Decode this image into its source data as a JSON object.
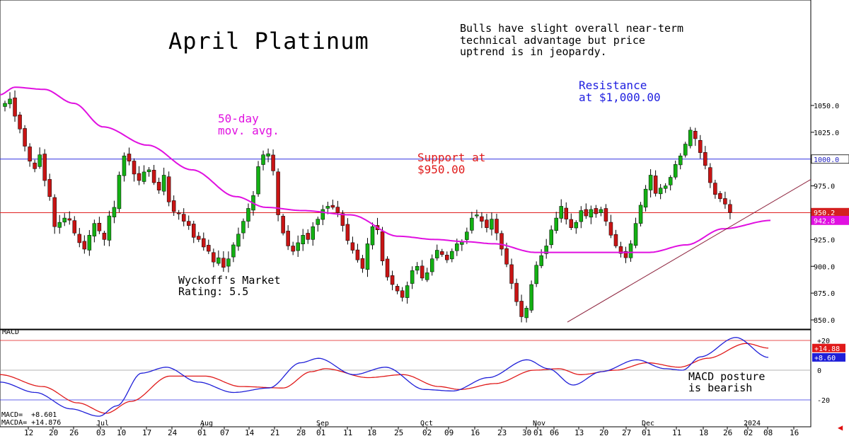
{
  "chart_data": [
    {
      "type": "candlestick",
      "title": "April Platinum",
      "ylim": [
        840,
        1075
      ],
      "y_ticks": [
        "850.0",
        "875.0",
        "900.0",
        "925.0",
        "950.0",
        "975.0",
        "1000.0",
        "1025.0",
        "1050.0"
      ],
      "x_months": [
        "Jul",
        "Aug",
        "Sep",
        "Oct",
        "Nov",
        "Dec",
        "2024"
      ],
      "x_days": [
        "12",
        "20",
        "26",
        "03",
        "10",
        "17",
        "24",
        "01",
        "07",
        "14",
        "21",
        "28",
        "01",
        "11",
        "18",
        "25",
        "02",
        "09",
        "16",
        "23",
        "30",
        "01",
        "06",
        "13",
        "20",
        "27",
        "01",
        "11",
        "18",
        "26",
        "02",
        "08",
        "16"
      ],
      "closes": [
        1052,
        1056,
        1040,
        1028,
        1012,
        998,
        991,
        1004,
        980,
        965,
        937,
        941,
        945,
        943,
        931,
        922,
        916,
        929,
        940,
        933,
        925,
        947,
        955,
        985,
        1003,
        998,
        986,
        980,
        988,
        990,
        978,
        971,
        985,
        960,
        951,
        949,
        942,
        938,
        927,
        925,
        918,
        914,
        904,
        908,
        899,
        907,
        920,
        930,
        942,
        954,
        966,
        993,
        1004,
        1005,
        989,
        948,
        931,
        919,
        914,
        922,
        929,
        925,
        937,
        944,
        953,
        956,
        955,
        950,
        938,
        924,
        915,
        906,
        898,
        921,
        937,
        934,
        905,
        890,
        883,
        877,
        871,
        882,
        896,
        900,
        889,
        894,
        907,
        915,
        911,
        906,
        914,
        921,
        923,
        932,
        945,
        948,
        942,
        936,
        944,
        931,
        916,
        902,
        884,
        867,
        853,
        861,
        883,
        901,
        910,
        919,
        934,
        945,
        956,
        944,
        936,
        941,
        952,
        947,
        953,
        949,
        953,
        942,
        929,
        919,
        912,
        908,
        921,
        940,
        957,
        972,
        985,
        968,
        973,
        975,
        983,
        995,
        1003,
        1014,
        1027,
        1019,
        1006,
        994,
        978,
        967,
        963,
        958,
        950.2
      ],
      "ma50": "smooth curve from ~1067 early, ~1013 mid-Jul, ~952 early-Sep, ~926 mid-Oct, ~913 mid-Nov, ~912 early-Dec, 942.8 at end",
      "hlines": [
        {
          "value": 1000.0,
          "label": "Resistance\nat $1,000.00",
          "color": "#3030e0"
        },
        {
          "value": 950.0,
          "label": "Support at\n$950.00",
          "color": "#e02020"
        }
      ],
      "price_tags": [
        {
          "value": 1000.0,
          "text": "1000.0",
          "kind": "resistance"
        },
        {
          "value": 950.2,
          "text": "950.2",
          "kind": "price"
        },
        {
          "value": 942.8,
          "text": "942.8",
          "kind": "ma"
        }
      ],
      "annotations": {
        "note": "Bulls have slight overall near-term\ntechnical advantage but price\nuptrend is in jeopardy.",
        "resistance": "Resistance\nat $1,000.00",
        "support": "Support at\n$950.00",
        "ma": "50-day\nmov. avg.",
        "rating": "Wyckoff's Market\nRating: 5.5"
      },
      "colors": {
        "up": "#13b013",
        "down": "#c81414",
        "ma": "#e010e0",
        "trend": "#8b1f3a",
        "resistance": "#3030e0",
        "support": "#e02020"
      }
    },
    {
      "type": "line",
      "title": "MACD",
      "ylim": [
        -28,
        28
      ],
      "y_ticks": [
        "+20",
        "0",
        "-20"
      ],
      "series": [
        {
          "name": "MACD",
          "color": "#1f1fd8",
          "last": 8.6
        },
        {
          "name": "MACDA",
          "color": "#e01a1a",
          "last": 14.88
        }
      ],
      "tags": {
        "macda": "+14.88",
        "macd": "+8.60"
      },
      "readout": {
        "macd": "MACD=  +8.601",
        "macda": "MACDA= +14.876"
      },
      "annotation": "MACD posture\nis bearish"
    }
  ]
}
